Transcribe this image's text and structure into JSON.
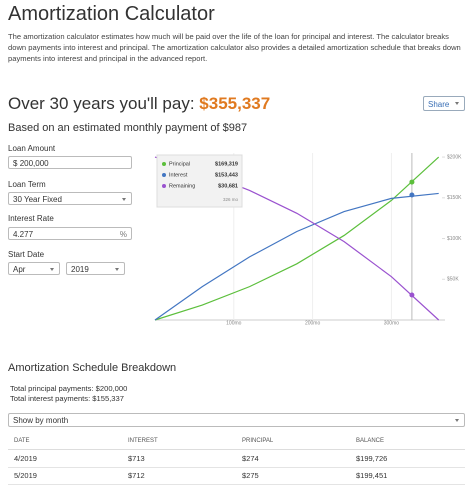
{
  "header": {
    "title": "Amortization Calculator",
    "description": "The amortization calculator estimates how much will be paid over the life of the loan for principal and interest. The calculator breaks down payments into interest and principal. The amortization calculator also provides a detailed amortization schedule that breaks down payments into interest and principal in the advanced report."
  },
  "summary": {
    "headline": "Over 30 years you'll pay:",
    "total": "$355,337",
    "share_button": "Share",
    "monthly_payment_text": "Based on an estimated monthly payment of $987"
  },
  "form": {
    "loan_amount": {
      "label": "Loan Amount",
      "prefix": "$",
      "value": "200,000"
    },
    "loan_term": {
      "label": "Loan Term",
      "value": "30 Year Fixed"
    },
    "interest_rate": {
      "label": "Interest Rate",
      "value": "4.277",
      "suffix": "%"
    },
    "start_date": {
      "label": "Start Date",
      "month": "Apr",
      "year": "2019"
    }
  },
  "chart_data": {
    "type": "line",
    "x": [
      0,
      60,
      120,
      180,
      240,
      300,
      360
    ],
    "series": [
      {
        "name": "Principal",
        "color": "#5cbf3c",
        "values": [
          0,
          18300,
          40970,
          69000,
          103800,
          146800,
          200000
        ]
      },
      {
        "name": "Interest",
        "color": "#4376c2",
        "values": [
          0,
          40920,
          77470,
          108660,
          133080,
          149300,
          155337
        ]
      },
      {
        "name": "Remaining",
        "color": "#9a52cf",
        "values": [
          200000,
          181700,
          159030,
          131000,
          96200,
          53200,
          0
        ]
      }
    ],
    "xlim": [
      0,
      368
    ],
    "ylim": [
      0,
      205000
    ],
    "xticks": [
      {
        "value": 100,
        "label": "100mo"
      },
      {
        "value": 200,
        "label": "200mo"
      },
      {
        "value": 300,
        "label": "300mo"
      }
    ],
    "yticks": [
      {
        "value": 50000,
        "label": "$50K"
      },
      {
        "value": 100000,
        "label": "$100K"
      },
      {
        "value": 150000,
        "label": "$150K"
      },
      {
        "value": 200000,
        "label": "$200K"
      }
    ],
    "marker_x": {
      "value": 326,
      "label": "326 mo"
    },
    "marker_values": [
      169319,
      153443,
      30681
    ],
    "marker_value_labels": [
      "$169,319",
      "$153,443",
      "$30,681"
    ]
  },
  "schedule": {
    "title": "Amortization Schedule Breakdown",
    "total_principal": "Total principal payments: $200,000",
    "total_interest": "Total interest payments: $155,337",
    "view_select": "Show by month",
    "table": {
      "columns": [
        "DATE",
        "INTEREST",
        "PRINCIPAL",
        "BALANCE"
      ],
      "rows": [
        [
          "4/2019",
          "$713",
          "$274",
          "$199,726"
        ],
        [
          "5/2019",
          "$712",
          "$275",
          "$199,451"
        ]
      ]
    }
  }
}
